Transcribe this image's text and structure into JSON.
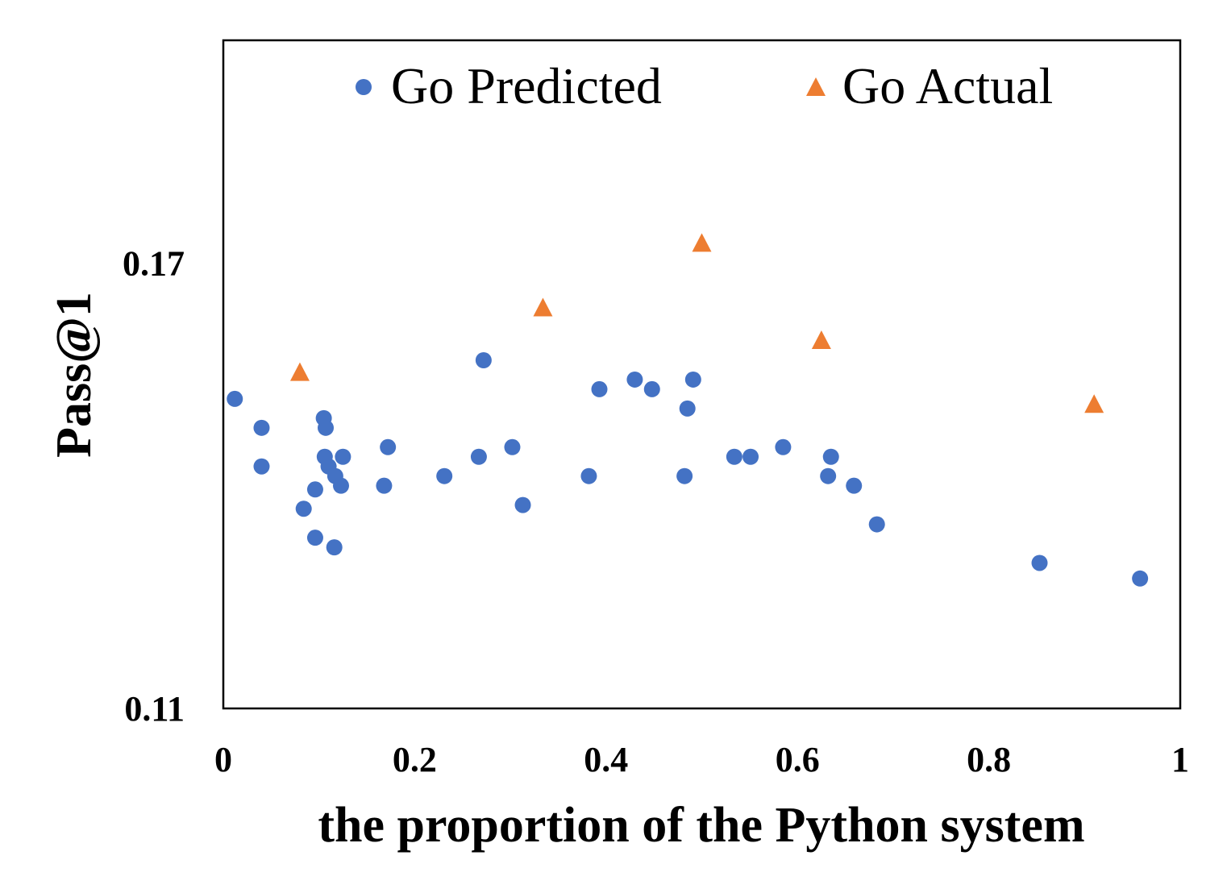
{
  "chart_data": {
    "type": "scatter",
    "title": "",
    "xlabel": "the proportion of the Python system",
    "ylabel": "Pass@1",
    "xlim": [
      0,
      1
    ],
    "ylim": [
      0.11,
      0.2
    ],
    "x_ticks": [
      "0",
      "0.2",
      "0.4",
      "0.6",
      "0.8",
      "1"
    ],
    "y_ticks": [
      "0.11",
      "0.17"
    ],
    "y_tick_values": [
      0.11,
      0.17
    ],
    "x_tick_values": [
      0,
      0.2,
      0.4,
      0.6,
      0.8,
      1
    ],
    "grid": false,
    "legend_position": "top",
    "series": [
      {
        "name": "Go Predicted",
        "marker": "circle",
        "color": "#4472C4",
        "points": [
          [
            0.012,
            0.1517
          ],
          [
            0.04,
            0.1478
          ],
          [
            0.04,
            0.1426
          ],
          [
            0.084,
            0.1369
          ],
          [
            0.096,
            0.1395
          ],
          [
            0.096,
            0.133
          ],
          [
            0.105,
            0.1491
          ],
          [
            0.107,
            0.1478
          ],
          [
            0.106,
            0.1439
          ],
          [
            0.11,
            0.1426
          ],
          [
            0.116,
            0.1317
          ],
          [
            0.117,
            0.1413
          ],
          [
            0.123,
            0.14
          ],
          [
            0.125,
            0.1439
          ],
          [
            0.168,
            0.14
          ],
          [
            0.172,
            0.1452
          ],
          [
            0.231,
            0.1413
          ],
          [
            0.267,
            0.1439
          ],
          [
            0.272,
            0.1569
          ],
          [
            0.302,
            0.1452
          ],
          [
            0.313,
            0.1374
          ],
          [
            0.382,
            0.1413
          ],
          [
            0.393,
            0.153
          ],
          [
            0.43,
            0.1543
          ],
          [
            0.448,
            0.153
          ],
          [
            0.482,
            0.1413
          ],
          [
            0.485,
            0.1504
          ],
          [
            0.491,
            0.1543
          ],
          [
            0.534,
            0.1439
          ],
          [
            0.551,
            0.1439
          ],
          [
            0.585,
            0.1452
          ],
          [
            0.632,
            0.1413
          ],
          [
            0.635,
            0.1439
          ],
          [
            0.659,
            0.14
          ],
          [
            0.683,
            0.1348
          ],
          [
            0.853,
            0.1296
          ],
          [
            0.958,
            0.1275
          ]
        ]
      },
      {
        "name": "Go Actual",
        "marker": "triangle",
        "color": "#ED7D31",
        "points": [
          [
            0.08,
            0.1552
          ],
          [
            0.334,
            0.1639
          ],
          [
            0.5,
            0.1726
          ],
          [
            0.625,
            0.1595
          ],
          [
            0.91,
            0.1509
          ]
        ]
      }
    ]
  }
}
